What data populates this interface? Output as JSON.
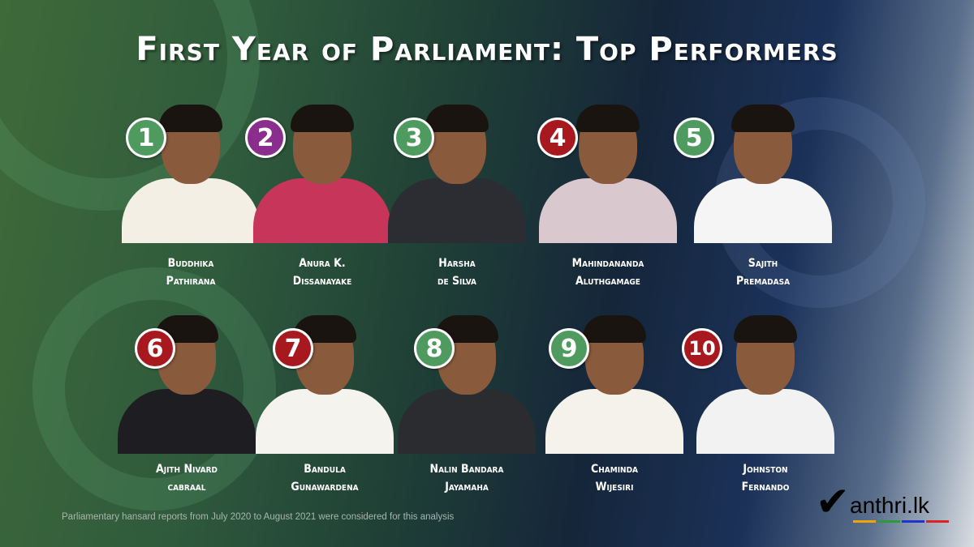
{
  "title": "First Year of Parliament: Top Performers",
  "colors": {
    "green": "#4e9a5f",
    "purple": "#8b2d8c",
    "red": "#a8191f"
  },
  "performers": [
    {
      "rank": "1",
      "first": "Buddhika",
      "last": "Pathirana",
      "badge": "green"
    },
    {
      "rank": "2",
      "first": "Anura K.",
      "last": "Dissanayake",
      "badge": "purple"
    },
    {
      "rank": "3",
      "first": "Harsha",
      "last": "de Silva",
      "badge": "green"
    },
    {
      "rank": "4",
      "first": "Mahindananda",
      "last": "Aluthgamage",
      "badge": "red"
    },
    {
      "rank": "5",
      "first": "Sajith",
      "last": "Premadasa",
      "badge": "green"
    },
    {
      "rank": "6",
      "first": "Ajith Nivard",
      "last": "cabraal",
      "badge": "red"
    },
    {
      "rank": "7",
      "first": "Bandula",
      "last": "Gunawardena",
      "badge": "red"
    },
    {
      "rank": "8",
      "first": "Nalin Bandara",
      "last": "Jayamaha",
      "badge": "green"
    },
    {
      "rank": "9",
      "first": "Chaminda",
      "last": "Wijesiri",
      "badge": "green"
    },
    {
      "rank": "10",
      "first": "Johnston",
      "last": "Fernando",
      "badge": "red"
    }
  ],
  "footnote": "Parliamentary hansard reports from July 2020 to August 2021 were considered for this analysis",
  "logo": {
    "text": "anthri.lk",
    "icon": "checkmark-icon"
  }
}
